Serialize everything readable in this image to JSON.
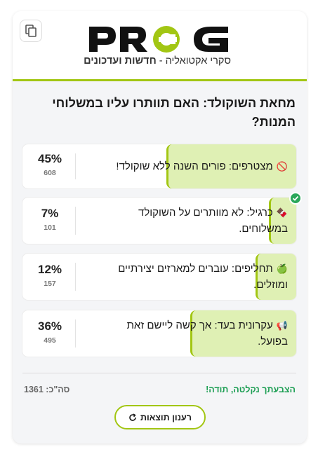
{
  "header": {
    "logo_text": "PROG",
    "tagline_prefix": "סקרי אקטואליה - ",
    "tagline_bold": "חדשות ועדכונים",
    "copy_icon": "copy-icon",
    "accent_color": "#a2c613"
  },
  "poll": {
    "question": "מחאת השוקולד: האם תוותרו עליו במשלוחי המנות?",
    "options": [
      {
        "icon": "prohibited-icon",
        "emoji": "🚫",
        "label": "מצטרפים: פורים השנה ללא שוקולד!",
        "percent_label": "45%",
        "percent": 45,
        "votes": "608",
        "selected": false
      },
      {
        "icon": "chocolate-bar-icon",
        "emoji": "🍫",
        "label": "כרגיל: לא מוותרים על השוקולד במשלוחים.",
        "percent_label": "7%",
        "percent": 7,
        "votes": "101",
        "selected": true
      },
      {
        "icon": "green-apple-icon",
        "emoji": "🍏",
        "label": "תחליפים: עוברים למארזים יצירתיים ומוזלים.",
        "percent_label": "12%",
        "percent": 12,
        "votes": "157",
        "selected": false
      },
      {
        "icon": "megaphone-icon",
        "emoji": "📢",
        "label": "עקרונית בעד: אך קשה ליישם זאת בפועל.",
        "percent_label": "36%",
        "percent": 36,
        "votes": "495",
        "selected": false
      }
    ]
  },
  "footer": {
    "thanks": "הצבעתך נקלטה, תודה!",
    "total": "סה\"כ: 1361",
    "refresh_label": "רענון תוצאות",
    "refresh_icon": "refresh-icon"
  }
}
